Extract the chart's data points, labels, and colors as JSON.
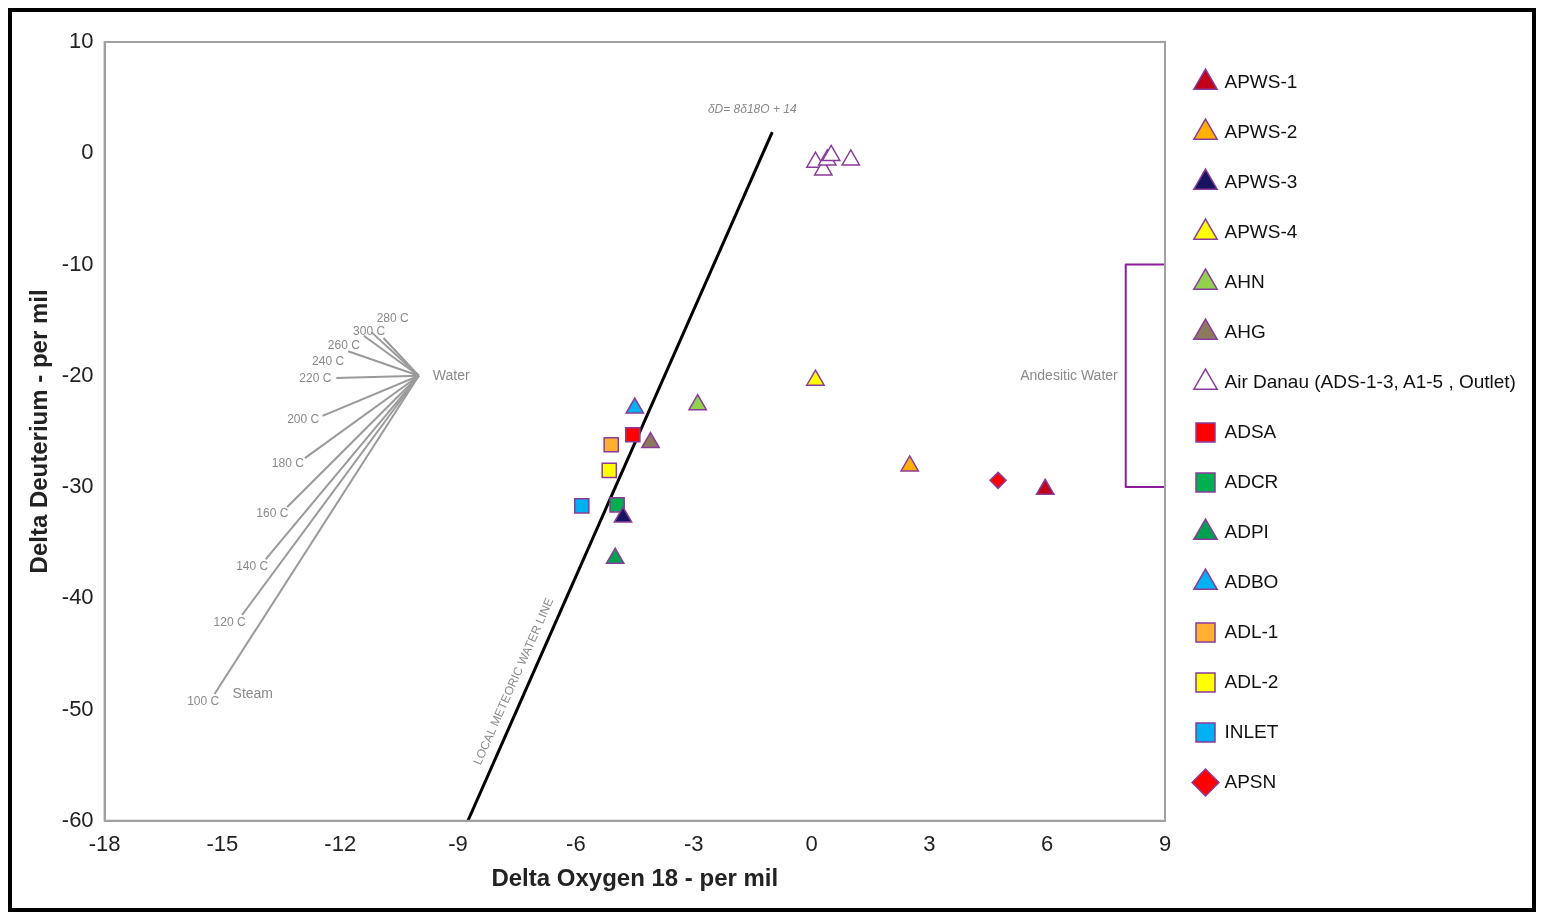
{
  "chart_data": {
    "type": "scatter",
    "xlabel": "Delta Oxygen 18 - per mil",
    "ylabel": "Delta Deuterium - per mil",
    "xlim": [
      -18,
      9
    ],
    "xticks": [
      -18,
      -15,
      -12,
      -9,
      -6,
      -3,
      0,
      3,
      6,
      9
    ],
    "ylim": [
      -60,
      10
    ],
    "yticks": [
      -60,
      -50,
      -40,
      -30,
      -20,
      -10,
      0,
      10
    ],
    "grid": false,
    "legend": "right",
    "series": [
      {
        "name": "APWS-1",
        "color": "#c00018",
        "marker": "triangle",
        "x": [
          5.95
        ],
        "values": [
          -30.2
        ]
      },
      {
        "name": "APWS-2",
        "color": "#ffb000",
        "marker": "triangle",
        "x": [
          2.5
        ],
        "values": [
          -28.1
        ]
      },
      {
        "name": "APWS-3",
        "color": "#14145f",
        "marker": "triangle",
        "x": [
          -4.8
        ],
        "values": [
          -32.7
        ]
      },
      {
        "name": "APWS-4",
        "color": "#ffff00",
        "marker": "triangle",
        "x": [
          0.1
        ],
        "values": [
          -20.4
        ]
      },
      {
        "name": "AHN",
        "color": "#92d050",
        "marker": "triangle",
        "x": [
          -2.9
        ],
        "values": [
          -22.6
        ]
      },
      {
        "name": "AHG",
        "color": "#8c7a5e",
        "marker": "triangle",
        "x": [
          -4.1
        ],
        "values": [
          -26.0
        ]
      },
      {
        "name": "Air Danau (ADS-1-3, A1-5 , Outlet)",
        "color": "#ffffff",
        "marker": "triangle",
        "x": [
          0.1,
          0.3,
          0.4,
          0.5,
          1.0
        ],
        "values": [
          -0.8,
          -1.5,
          -0.6,
          -0.2,
          -0.6
        ]
      },
      {
        "name": "ADSA",
        "color": "#ff0000",
        "marker": "square",
        "x": [
          -4.55
        ],
        "values": [
          -25.3
        ]
      },
      {
        "name": "ADCR",
        "color": "#00b050",
        "marker": "square",
        "x": [
          -4.95
        ],
        "values": [
          -31.6
        ]
      },
      {
        "name": "ADPI",
        "color": "#00a050",
        "marker": "triangle",
        "x": [
          -5.0
        ],
        "values": [
          -36.4
        ]
      },
      {
        "name": "ADBO",
        "color": "#00b0f0",
        "marker": "triangle",
        "x": [
          -4.5
        ],
        "values": [
          -22.9
        ]
      },
      {
        "name": "ADL-1",
        "color": "#ffb030",
        "marker": "square",
        "x": [
          -5.1
        ],
        "values": [
          -26.2
        ]
      },
      {
        "name": "ADL-2",
        "color": "#ffff00",
        "marker": "square",
        "x": [
          -5.15
        ],
        "values": [
          -28.5
        ]
      },
      {
        "name": "INLET",
        "color": "#00b0f0",
        "marker": "square",
        "x": [
          -5.85
        ],
        "values": [
          -31.7
        ]
      },
      {
        "name": "APSN",
        "color": "#ff0000",
        "marker": "diamond",
        "x": [
          4.75
        ],
        "values": [
          -29.4
        ]
      },
      {
        "type": "line",
        "color": "#000000",
        "x": [
          -8.75,
          -1.0
        ],
        "values": [
          -60,
          1.9
        ]
      },
      {
        "type": "line",
        "color": "#9a9a9a",
        "x": [
          -10.0,
          -10.9
        ],
        "values": [
          -20.0,
          -16.6
        ]
      },
      {
        "type": "line",
        "color": "#9a9a9a",
        "x": [
          -10.0,
          -11.2
        ],
        "values": [
          -20.0,
          -16.1
        ]
      },
      {
        "type": "line",
        "color": "#9a9a9a",
        "x": [
          -10.0,
          -11.4
        ],
        "values": [
          -20.0,
          -16.4
        ]
      },
      {
        "type": "line",
        "color": "#9a9a9a",
        "x": [
          -10.0,
          -11.8
        ],
        "values": [
          -20.0,
          -17.8
        ]
      },
      {
        "type": "line",
        "color": "#9a9a9a",
        "x": [
          -10.0,
          -12.1
        ],
        "values": [
          -20.0,
          -20.2
        ]
      },
      {
        "type": "line",
        "color": "#9a9a9a",
        "x": [
          -10.0,
          -12.45
        ],
        "values": [
          -20.0,
          -23.6
        ]
      },
      {
        "type": "line",
        "color": "#9a9a9a",
        "x": [
          -10.0,
          -12.9
        ],
        "values": [
          -20.0,
          -27.4
        ]
      },
      {
        "type": "line",
        "color": "#9a9a9a",
        "x": [
          -10.0,
          -13.35
        ],
        "values": [
          -20.0,
          -31.8
        ]
      },
      {
        "type": "line",
        "color": "#9a9a9a",
        "x": [
          -10.0,
          -13.9
        ],
        "values": [
          -20.0,
          -36.5
        ]
      },
      {
        "type": "line",
        "color": "#9a9a9a",
        "x": [
          -10.0,
          -14.5
        ],
        "values": [
          -20.0,
          -41.5
        ]
      },
      {
        "type": "line",
        "color": "#9a9a9a",
        "x": [
          -10.0,
          -15.2
        ],
        "values": [
          -20.0,
          -48.6
        ]
      },
      {
        "type": "line",
        "color": "#8e1a9e",
        "x": [
          9,
          8,
          8,
          9
        ],
        "values": [
          -10,
          -10,
          -30,
          -30
        ]
      }
    ],
    "annotations": [
      {
        "text": "δD= 8δ18O + 14",
        "x": -1.0,
        "y": 1.9
      },
      {
        "text": "LOCAL METEORIC WATER LINE",
        "x": -7.25,
        "y": -48
      },
      {
        "text": "Water",
        "x": -10.0,
        "y": -20.0
      },
      {
        "text": "300 C",
        "x": -10.9,
        "y": -16.6
      },
      {
        "text": "280 C",
        "x": -11.2,
        "y": -16.1
      },
      {
        "text": "260 C",
        "x": -11.4,
        "y": -16.4
      },
      {
        "text": "240 C",
        "x": -11.8,
        "y": -17.8
      },
      {
        "text": "220 C",
        "x": -12.1,
        "y": -20.2
      },
      {
        "text": "200 C",
        "x": -12.45,
        "y": -23.6
      },
      {
        "text": "180 C",
        "x": -12.9,
        "y": -27.4
      },
      {
        "text": "160 C",
        "x": -13.35,
        "y": -31.8
      },
      {
        "text": "140 C",
        "x": -13.9,
        "y": -36.5
      },
      {
        "text": "120 C",
        "x": -14.5,
        "y": -41.5
      },
      {
        "text": "100 C",
        "x": -15.2,
        "y": -48.6
      },
      {
        "text": "Steam",
        "x": -15.2,
        "y": -48.6
      },
      {
        "text": "Andesitic Water",
        "x": 8,
        "y": -20
      }
    ]
  }
}
